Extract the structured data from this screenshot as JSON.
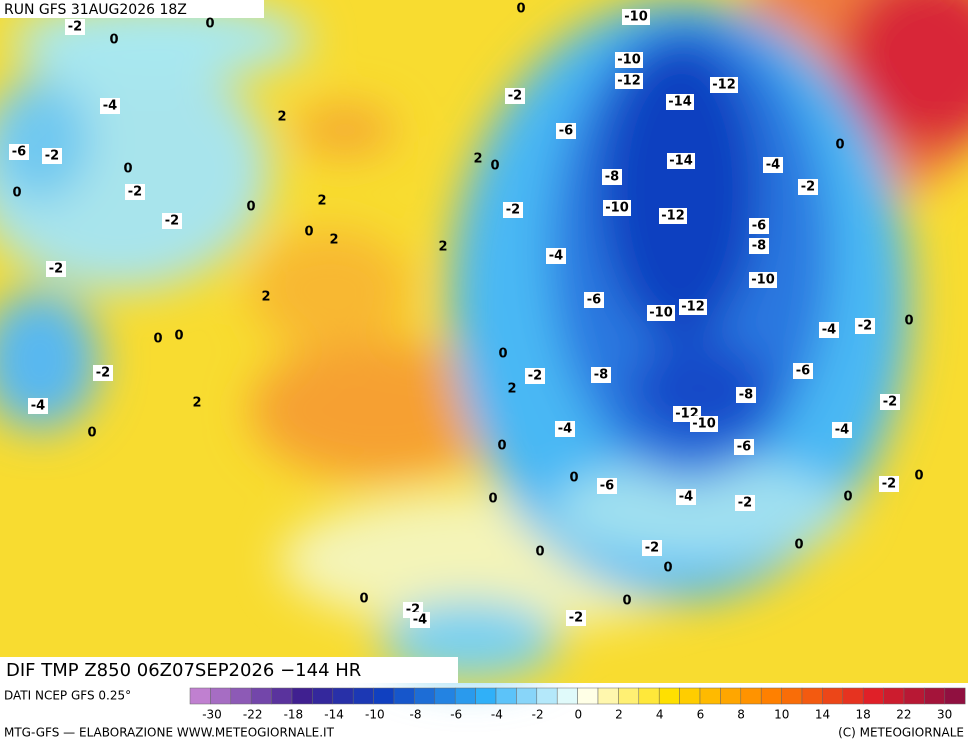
{
  "header": {
    "run": "RUN GFS 31AUG2026 18Z",
    "title": "DIF TMP Z850 06Z07SEP2026 −144 HR"
  },
  "map": {
    "contour_labels": [
      -10,
      0,
      -2,
      0,
      0,
      -10,
      -12,
      -12,
      -14,
      -4,
      2,
      -2,
      -6,
      -6,
      -2,
      0,
      -14,
      -4,
      0,
      0,
      -2,
      2,
      0,
      -8,
      -2,
      0,
      2,
      -2,
      -10,
      -12,
      -2,
      0,
      2,
      -6,
      -8,
      2,
      -4,
      -2,
      -10,
      2,
      -6,
      -10,
      -12,
      -4,
      -2,
      0,
      0,
      0,
      0,
      -2,
      -2,
      -8,
      -6,
      2,
      -8,
      -4,
      2,
      -12,
      -10,
      -2,
      0,
      -4,
      -4,
      0,
      -6,
      0,
      -6,
      -2,
      0,
      0,
      -4,
      -2,
      0,
      0,
      -2,
      0,
      0,
      0,
      -2,
      -4,
      0,
      -2,
      -6
    ]
  },
  "colorbar": {
    "ticks": [
      -30,
      -22,
      -18,
      -14,
      -10,
      -8,
      -6,
      -4,
      -2,
      0,
      2,
      4,
      6,
      8,
      10,
      14,
      18,
      22,
      30
    ]
  },
  "footer": {
    "source": "DATI NCEP GFS 0.25°",
    "credit": "MTG-GFS — ELABORAZIONE WWW.METEOGIORNALE.IT",
    "copyright": "(C) METEOGIORNALE"
  }
}
